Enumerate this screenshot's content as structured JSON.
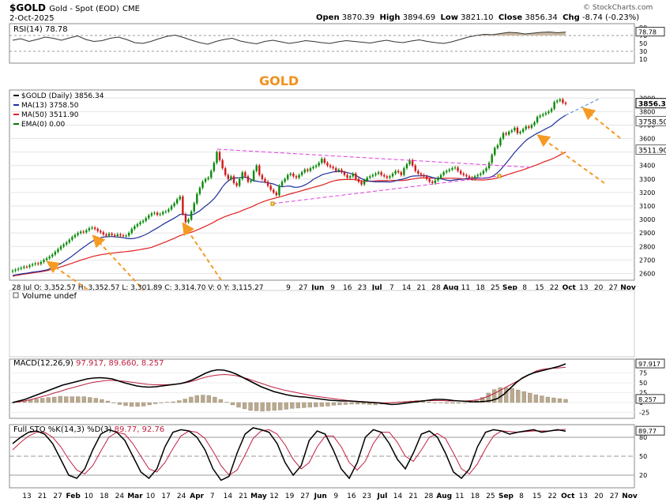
{
  "header": {
    "symbol": "$GOLD",
    "name": "Gold - Spot (EOD)",
    "exchange": "CME",
    "date": "2-Oct-2025",
    "open_label": "Open",
    "open": "3870.39",
    "high_label": "High",
    "high": "3894.69",
    "low_label": "Low",
    "low": "3821.10",
    "close_label": "Close",
    "close": "3856.34",
    "chg_label": "Chg",
    "chg": "-8.74 (-0.23%)",
    "copyright": "© StockCharts.com"
  },
  "colors": {
    "ma13": "#1f2e9a",
    "ma50": "#e02020",
    "ema0": "#0a7a0a",
    "up_bar": "#0a8a0a",
    "down_bar": "#d01818",
    "title": "#f0901c",
    "arrow": "#f59a23",
    "triangle": "#e03ce0",
    "volume_bar": "#b9a98f"
  },
  "chart_data": [
    {
      "type": "line",
      "name": "rsi",
      "label": "RSI(14) 78.78",
      "last": "78.78",
      "ylim": [
        0,
        100
      ],
      "ticks": [
        "90",
        "70",
        "50",
        "30",
        "10"
      ],
      "reference_lines": [
        70,
        30
      ],
      "values": [
        58,
        62,
        55,
        60,
        66,
        63,
        58,
        64,
        69,
        60,
        55,
        57,
        63,
        66,
        60,
        52,
        50,
        55,
        62,
        68,
        71,
        65,
        58,
        52,
        48,
        55,
        60,
        63,
        56,
        52,
        49,
        55,
        58,
        54,
        50,
        53,
        57,
        55,
        52,
        50,
        54,
        57,
        55,
        53,
        51,
        55,
        58,
        54,
        52,
        56,
        59,
        55,
        52,
        50,
        54,
        60,
        66,
        70,
        73,
        72,
        75,
        78,
        77,
        74,
        76,
        78,
        79,
        77,
        78.78
      ]
    },
    {
      "type": "candlestick",
      "name": "price",
      "title": "GOLD",
      "legend": [
        {
          "key": "price",
          "label": "$GOLD (Daily) 3856.34"
        },
        {
          "key": "ma13",
          "label": "MA(13) 3758.50"
        },
        {
          "key": "ma50",
          "label": "MA(50) 3511.90"
        },
        {
          "key": "ema0",
          "label": "EMA(0) 0.00"
        }
      ],
      "ylim": [
        2550,
        3960
      ],
      "y_ticks": [
        "3900",
        "3800",
        "3700",
        "3600",
        "3500",
        "3400",
        "3300",
        "3200",
        "3100",
        "3000",
        "2900",
        "2800",
        "2700",
        "2600"
      ],
      "last_labels": [
        "3856.34",
        "3758.50",
        "3511.90"
      ],
      "hover_readout": "28 Jul O: 3,352.57   H: 3,352.57   L: 3,301.89   C: 3,314.70   V: 0   Y: 3,115.27",
      "x_labels": [
        "9",
        "27",
        "Jun",
        "9",
        "16",
        "23",
        "Jul",
        "7",
        "14",
        "21",
        "28",
        "Aug",
        "11",
        "18",
        "25",
        "Sep",
        "8",
        "15",
        "22",
        "Oct",
        "13",
        "20",
        "27",
        "Nov"
      ],
      "closes": [
        2620,
        2628,
        2635,
        2642,
        2650,
        2648,
        2660,
        2668,
        2675,
        2670,
        2685,
        2700,
        2712,
        2725,
        2740,
        2760,
        2780,
        2800,
        2815,
        2830,
        2850,
        2870,
        2885,
        2900,
        2910,
        2905,
        2920,
        2935,
        2940,
        2930,
        2915,
        2905,
        2890,
        2880,
        2895,
        2885,
        2878,
        2890,
        2882,
        2876,
        2880,
        2900,
        2930,
        2950,
        2965,
        2980,
        2990,
        3010,
        3030,
        3045,
        3050,
        3035,
        3040,
        3055,
        3060,
        3075,
        3100,
        3120,
        3150,
        3170,
        3040,
        2980,
        3000,
        3060,
        3120,
        3190,
        3235,
        3280,
        3300,
        3310,
        3360,
        3420,
        3500,
        3440,
        3380,
        3330,
        3300,
        3320,
        3270,
        3250,
        3300,
        3350,
        3320,
        3280,
        3290,
        3360,
        3400,
        3330,
        3300,
        3280,
        3250,
        3220,
        3200,
        3180,
        3250,
        3280,
        3300,
        3330,
        3340,
        3320,
        3310,
        3330,
        3350,
        3370,
        3360,
        3380,
        3390,
        3400,
        3420,
        3450,
        3420,
        3400,
        3390,
        3380,
        3360,
        3370,
        3350,
        3330,
        3310,
        3320,
        3340,
        3300,
        3280,
        3260,
        3290,
        3310,
        3320,
        3330,
        3340,
        3350,
        3330,
        3320,
        3310,
        3320,
        3340,
        3360,
        3350,
        3330,
        3380,
        3410,
        3440,
        3400,
        3360,
        3340,
        3330,
        3320,
        3300,
        3280,
        3270,
        3290,
        3310,
        3330,
        3350,
        3360,
        3370,
        3380,
        3385,
        3360,
        3340,
        3330,
        3320,
        3310,
        3300,
        3320,
        3330,
        3340,
        3360,
        3380,
        3420,
        3480,
        3530,
        3550,
        3600,
        3640,
        3630,
        3650,
        3660,
        3680,
        3640,
        3650,
        3670,
        3690,
        3680,
        3700,
        3720,
        3760,
        3770,
        3780,
        3790,
        3800,
        3820,
        3870,
        3880,
        3890,
        3865,
        3856.34
      ],
      "ma13_last": 3758.5,
      "ma50_last": 3511.9
    },
    {
      "type": "bar",
      "name": "volume",
      "label": "Volume undef"
    },
    {
      "type": "line",
      "name": "macd",
      "label": "MACD(12,26,9) 97.917, 89.660, 8.257",
      "label_macd": "MACD(12,26,9)",
      "label_vals": "97.917, 89.660, 8.257",
      "last_labels": [
        "97.917",
        "8.257"
      ],
      "ticks": [
        "75",
        "50",
        "25",
        "0",
        "-25"
      ],
      "ylim": [
        -40,
        110
      ],
      "macd": [
        0,
        4,
        8,
        14,
        20,
        26,
        32,
        38,
        44,
        48,
        52,
        56,
        60,
        62,
        63,
        62,
        60,
        55,
        50,
        46,
        42,
        40,
        39,
        40,
        42,
        44,
        46,
        48,
        52,
        58,
        66,
        74,
        80,
        83,
        82,
        78,
        72,
        64,
        56,
        48,
        40,
        34,
        28,
        24,
        20,
        17,
        15,
        14,
        12,
        10,
        8,
        6,
        5,
        4,
        4,
        3,
        2,
        1,
        0,
        -1,
        -3,
        -5,
        -4,
        -2,
        0,
        2,
        4,
        6,
        8,
        8,
        7,
        5,
        4,
        3,
        2,
        2,
        3,
        5,
        10,
        20,
        35,
        50,
        62,
        70,
        76,
        80,
        84,
        88,
        92,
        97.917
      ],
      "signal": [
        0,
        2,
        4,
        7,
        11,
        15,
        19,
        24,
        28,
        33,
        37,
        41,
        45,
        49,
        52,
        54,
        56,
        56,
        55,
        54,
        52,
        50,
        48,
        46,
        45,
        45,
        45,
        46,
        47,
        49,
        52,
        56,
        61,
        65,
        68,
        70,
        71,
        70,
        68,
        64,
        60,
        55,
        50,
        45,
        40,
        36,
        32,
        29,
        26,
        23,
        20,
        17,
        15,
        13,
        11,
        9,
        7,
        5,
        4,
        3,
        2,
        1,
        0,
        -1,
        -1,
        0,
        1,
        2,
        3,
        4,
        5,
        5,
        5,
        5,
        4,
        4,
        4,
        4,
        5,
        7,
        11,
        17,
        24,
        32,
        40,
        48,
        56,
        64,
        72,
        80,
        84,
        86,
        87,
        88,
        89.66
      ],
      "histogram": [
        0,
        2,
        4,
        7,
        9,
        11,
        13,
        14,
        16,
        15,
        15,
        15,
        15,
        13,
        11,
        8,
        4,
        -1,
        -5,
        -8,
        -10,
        -10,
        -9,
        -6,
        -3,
        -1,
        1,
        2,
        5,
        9,
        14,
        18,
        19,
        18,
        14,
        8,
        1,
        -6,
        -12,
        -16,
        -20,
        -21,
        -22,
        -21,
        -20,
        -19,
        -17,
        -15,
        -14,
        -13,
        -12,
        -11,
        -10,
        -9,
        -7,
        -6,
        -5,
        -4,
        -4,
        -4,
        -5,
        -6,
        -4,
        -1,
        1,
        2,
        3,
        4,
        5,
        4,
        2,
        0,
        -1,
        -2,
        -2,
        -2,
        -1,
        1,
        5,
        13,
        24,
        33,
        38,
        38,
        36,
        32,
        28,
        24,
        20,
        17,
        14,
        12,
        10,
        8.257
      ]
    },
    {
      "type": "line",
      "name": "stoch",
      "label": "Full STO %K(14,3) %D(3) 89.77, 92.76",
      "label_sto": "Full STO %K(14,3) %D(3)",
      "label_vals": "89.77, 92.76",
      "last": "89.77",
      "ticks": [
        "80",
        "50",
        "20"
      ],
      "ylim": [
        0,
        100
      ],
      "k": [
        70,
        80,
        88,
        90,
        85,
        70,
        45,
        20,
        15,
        30,
        60,
        85,
        92,
        88,
        75,
        50,
        25,
        15,
        30,
        65,
        88,
        92,
        90,
        80,
        60,
        30,
        12,
        18,
        55,
        85,
        95,
        92,
        88,
        70,
        40,
        20,
        35,
        75,
        90,
        85,
        60,
        30,
        15,
        40,
        80,
        92,
        88,
        70,
        45,
        30,
        55,
        85,
        90,
        80,
        55,
        25,
        15,
        30,
        65,
        88,
        92,
        90,
        85,
        88,
        90,
        92,
        88,
        90,
        92,
        89.77
      ],
      "d": [
        60,
        72,
        82,
        88,
        88,
        80,
        65,
        45,
        28,
        22,
        35,
        58,
        80,
        88,
        85,
        70,
        50,
        30,
        25,
        40,
        62,
        82,
        90,
        88,
        78,
        58,
        35,
        20,
        28,
        52,
        78,
        90,
        92,
        85,
        68,
        45,
        30,
        40,
        65,
        82,
        82,
        65,
        40,
        28,
        42,
        70,
        88,
        88,
        72,
        50,
        42,
        60,
        80,
        86,
        78,
        55,
        30,
        22,
        38,
        62,
        82,
        90,
        89,
        88,
        89,
        90,
        90,
        90,
        91,
        92.76
      ]
    }
  ],
  "x_axis": {
    "labels": [
      "13",
      "21",
      "27",
      "Feb",
      "10",
      "18",
      "24",
      "Mar",
      "10",
      "17",
      "24",
      "Apr",
      "7",
      "14",
      "21",
      "May",
      "12",
      "19",
      "27",
      "Jun",
      "9",
      "16",
      "23",
      "Jul",
      "14",
      "21",
      "28",
      "Aug",
      "11",
      "18",
      "25",
      "Sep",
      "8",
      "15",
      "22",
      "Oct",
      "13",
      "20",
      "27",
      "Nov"
    ]
  }
}
